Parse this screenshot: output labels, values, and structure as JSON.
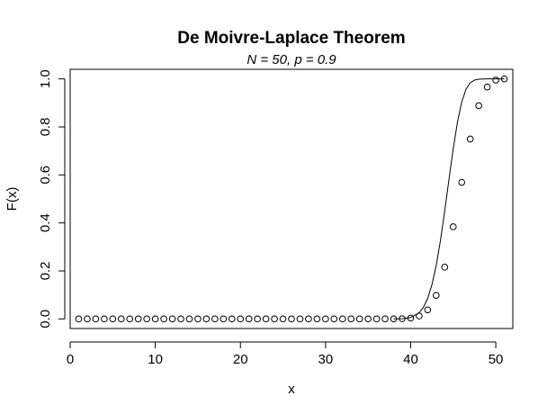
{
  "chart_data": {
    "type": "line",
    "title": "De Moivre-Laplace Theorem",
    "subtitle": "N = 50,  p = 0.9",
    "xlabel": "x",
    "ylabel": "F(x)",
    "xlim": [
      0,
      52
    ],
    "ylim": [
      -0.04,
      1.04
    ],
    "xticks": [
      0,
      10,
      20,
      30,
      40,
      50
    ],
    "yticks": [
      0.0,
      0.2,
      0.4,
      0.6,
      0.8,
      1.0
    ],
    "xtick_labels": [
      "0",
      "10",
      "20",
      "30",
      "40",
      "50"
    ],
    "ytick_labels": [
      "0.0",
      "0.2",
      "0.4",
      "0.6",
      "0.8",
      "1.0"
    ],
    "grid": false,
    "series": [
      {
        "type": "scatter",
        "marker": "open-circle",
        "x": [
          1,
          2,
          3,
          4,
          5,
          6,
          7,
          8,
          9,
          10,
          11,
          12,
          13,
          14,
          15,
          16,
          17,
          18,
          19,
          20,
          21,
          22,
          23,
          24,
          25,
          26,
          27,
          28,
          29,
          30,
          31,
          32,
          33,
          34,
          35,
          36,
          37,
          38,
          39,
          40,
          41,
          42,
          43,
          44,
          45,
          46,
          47,
          48,
          49,
          50,
          51
        ],
        "y": [
          0,
          0,
          0,
          0,
          0,
          0,
          0,
          0,
          0,
          0,
          0,
          0,
          0,
          0,
          0,
          0,
          0,
          0,
          0,
          0,
          0,
          0,
          0,
          0,
          0,
          0,
          0,
          0,
          0,
          0,
          0,
          0,
          0,
          0,
          0,
          0,
          0,
          0.0001,
          0.0008,
          0.0032,
          0.0121,
          0.0378,
          0.098,
          0.2156,
          0.3839,
          0.5688,
          0.7497,
          0.8883,
          0.9662,
          0.9948,
          1.0
        ]
      },
      {
        "type": "line",
        "x": [
          38,
          39,
          40,
          41,
          41.5,
          42,
          42.5,
          43,
          43.5,
          44,
          44.5,
          45,
          45.5,
          46,
          46.5,
          47,
          47.5,
          48,
          48.5,
          49,
          49.5,
          50,
          50.5,
          51
        ],
        "y": [
          0.0001,
          0.0009,
          0.0055,
          0.0256,
          0.0483,
          0.0856,
          0.1426,
          0.2229,
          0.3268,
          0.4497,
          0.5815,
          0.709,
          0.8205,
          0.9041,
          0.9567,
          0.9839,
          0.9951,
          0.9988,
          0.9997,
          1.0,
          1.0,
          1.0,
          1.0,
          1.0
        ]
      }
    ]
  }
}
